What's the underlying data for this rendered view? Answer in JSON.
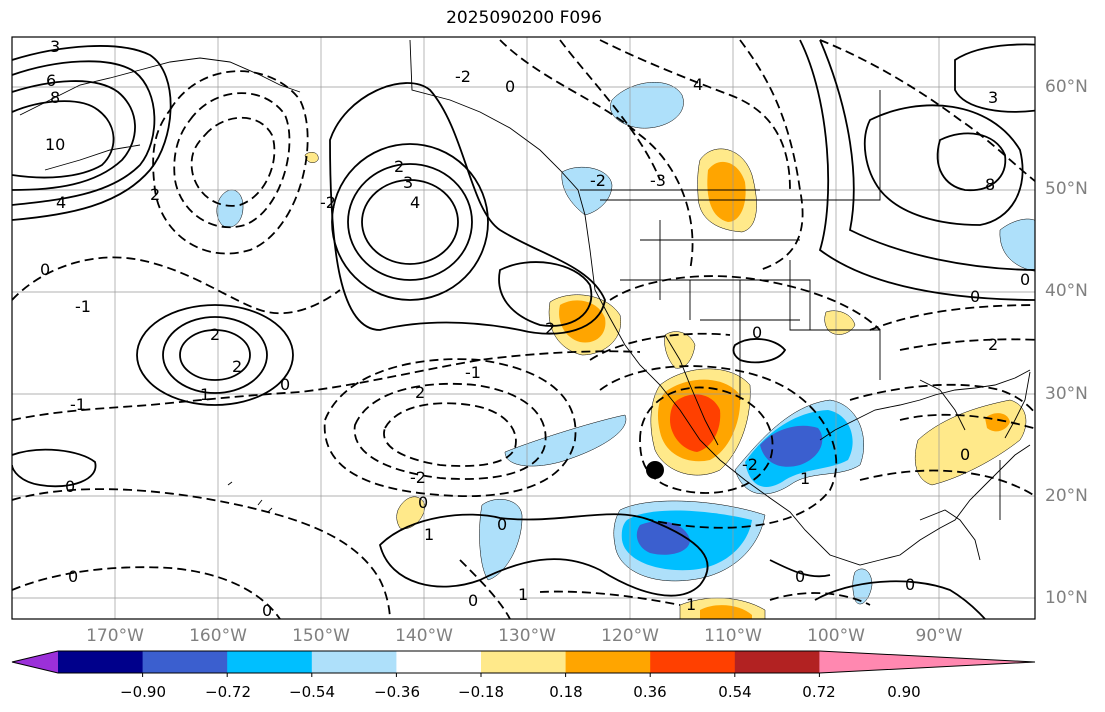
{
  "title": "2025090200 F096",
  "lat_labels": [
    "60°N",
    "50°N",
    "40°N",
    "30°N",
    "20°N",
    "10°N"
  ],
  "lon_labels": [
    "170°W",
    "160°W",
    "150°W",
    "140°W",
    "130°W",
    "120°W",
    "110°W",
    "100°W",
    "90°W"
  ],
  "colorbar": {
    "ticks": [
      "−0.90",
      "−0.72",
      "−0.54",
      "−0.36",
      "−0.18",
      "0.18",
      "0.36",
      "0.54",
      "0.72",
      "0.90"
    ],
    "colors": [
      "#9b30d9",
      "#00008b",
      "#3b5fcf",
      "#00bfff",
      "#aee0fa",
      "#ffffff",
      "#ffe98a",
      "#ffa500",
      "#ff4000",
      "#b22222",
      "#ff88b0"
    ]
  },
  "contour_labels": {
    "c3a": "3",
    "c6": "6",
    "c8a": "8",
    "c10": "10",
    "c4a": "4",
    "c2a": "2",
    "c0a": "0",
    "c1a": "-1",
    "c0b": "0",
    "c2b": "2",
    "c2c": "2",
    "c1b": "-1",
    "c0c": "0",
    "c2d": "-2",
    "c3b": "3",
    "c4b": "4",
    "c2e": "2",
    "c2f": "-2",
    "c1c": "-1",
    "c2g": "2",
    "c0d": "0",
    "c2h": "-2",
    "c0e": "0",
    "c1d": "1",
    "c0f": "0",
    "c1e": "1",
    "c0g": "0",
    "c2i": "2",
    "c0h": "0",
    "c4c": "4",
    "c3c": "-3",
    "c2j": "-2",
    "c3d": "3",
    "c8b": "8",
    "c0i": "0",
    "c2k": "2",
    "c0j": "0",
    "c0k": "0",
    "c0l": "0",
    "c2l": "-2",
    "c1f": "1",
    "c0m": "0",
    "c0n": "0",
    "c0o": "0",
    "c1g": "1",
    "c1h": "1"
  }
}
